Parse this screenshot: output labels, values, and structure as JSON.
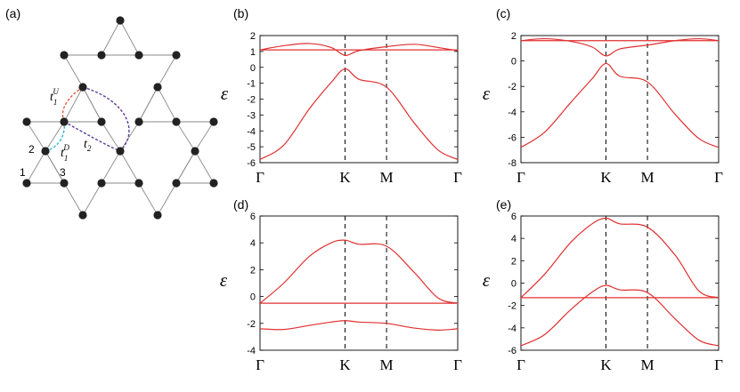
{
  "lattice": {
    "label": "(a)",
    "site_labels": [
      "1",
      "2",
      "3"
    ],
    "hoppings": [
      {
        "symbol": "t",
        "sub": "1",
        "sup": "U",
        "color": "#e8553c"
      },
      {
        "symbol": "t",
        "sub": "1",
        "sup": "D",
        "color": "#2bb5d8"
      },
      {
        "symbol": "t",
        "sub": "2",
        "sup": "",
        "color": "#5a3a9a"
      }
    ]
  },
  "chart_data": [
    {
      "type": "line",
      "label": "(b)",
      "ylabel": "ε",
      "ylim": [
        -6,
        2
      ],
      "yticks": [
        -6,
        -5,
        -4,
        -3,
        -2,
        -1,
        0,
        1,
        2
      ],
      "xticks": [
        "Γ",
        "K",
        "M",
        "Γ"
      ],
      "vlines": [
        "K",
        "M"
      ],
      "series": [
        {
          "values": [
            1.1,
            1.36,
            1.5,
            1.25,
            0.75,
            1.05,
            1.3,
            1.45,
            1.25,
            1.05
          ]
        },
        {
          "values": [
            1.1,
            1.1,
            1.1,
            1.1,
            1.1,
            1.1,
            1.1,
            1.1,
            1.1,
            1.1
          ]
        },
        {
          "values": [
            -5.8,
            -4.9,
            -2.6,
            -0.95,
            -0.1,
            -0.75,
            -1.25,
            -3.5,
            -5.2,
            -5.8
          ]
        }
      ]
    },
    {
      "type": "line",
      "label": "(c)",
      "ylabel": "ε",
      "ylim": [
        -8,
        2
      ],
      "yticks": [
        -8,
        -6,
        -4,
        -2,
        0,
        2
      ],
      "xticks": [
        "Γ",
        "K",
        "M",
        "Γ"
      ],
      "vlines": [
        "K",
        "M"
      ],
      "series": [
        {
          "values": [
            1.6,
            1.75,
            1.55,
            1.1,
            0.4,
            0.95,
            1.25,
            1.6,
            1.75,
            1.6
          ]
        },
        {
          "values": [
            1.6,
            1.6,
            1.6,
            1.6,
            1.6,
            1.6,
            1.6,
            1.6,
            1.6,
            1.6
          ]
        },
        {
          "values": [
            -6.8,
            -5.6,
            -3.3,
            -1.4,
            -0.2,
            -1.2,
            -1.65,
            -4.2,
            -6.1,
            -6.8
          ]
        }
      ]
    },
    {
      "type": "line",
      "label": "(d)",
      "ylabel": "ε",
      "ylim": [
        -4,
        6
      ],
      "yticks": [
        -4,
        -2,
        0,
        2,
        4,
        6
      ],
      "xticks": [
        "Γ",
        "K",
        "M",
        "Γ"
      ],
      "vlines": [
        "K",
        "M"
      ],
      "series": [
        {
          "values": [
            -0.5,
            1.0,
            3.0,
            4.0,
            4.2,
            3.9,
            3.75,
            1.8,
            -0.1,
            -0.5
          ]
        },
        {
          "values": [
            -0.5,
            -0.5,
            -0.5,
            -0.5,
            -0.5,
            -0.5,
            -0.5,
            -0.5,
            -0.5,
            -0.5
          ]
        },
        {
          "values": [
            -2.4,
            -2.45,
            -2.15,
            -1.9,
            -1.8,
            -1.9,
            -2.0,
            -2.35,
            -2.5,
            -2.4
          ]
        }
      ]
    },
    {
      "type": "line",
      "label": "(e)",
      "ylabel": "ε",
      "ylim": [
        -6,
        6
      ],
      "yticks": [
        -6,
        -4,
        -2,
        0,
        2,
        4,
        6
      ],
      "xticks": [
        "Γ",
        "K",
        "M",
        "Γ"
      ],
      "vlines": [
        "K",
        "M"
      ],
      "series": [
        {
          "values": [
            -1.3,
            0.8,
            3.6,
            5.3,
            5.8,
            5.3,
            5.0,
            2.5,
            -0.7,
            -1.3
          ]
        },
        {
          "values": [
            -1.3,
            -1.3,
            -1.3,
            -1.3,
            -1.3,
            -1.3,
            -1.3,
            -1.3,
            -1.3,
            -1.3
          ]
        },
        {
          "values": [
            -5.6,
            -4.6,
            -2.4,
            -0.8,
            -0.2,
            -0.6,
            -0.85,
            -3.2,
            -5.1,
            -5.6
          ]
        }
      ]
    }
  ],
  "colors": {
    "band": "#e03030",
    "axis": "#000000",
    "site": "#222222",
    "bond": "#8a8a8a"
  }
}
